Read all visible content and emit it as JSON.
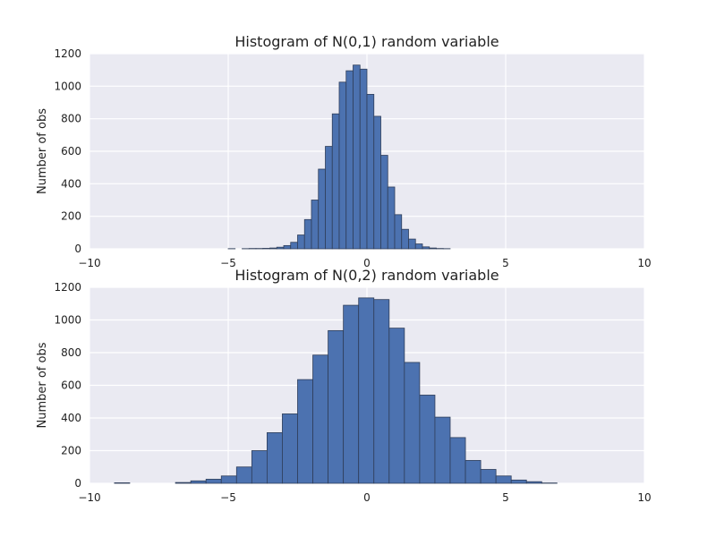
{
  "chart_data": [
    {
      "type": "bar",
      "title": "Histogram of N(0,1) random variable",
      "xlabel": "",
      "ylabel": "Number of obs",
      "xlim": [
        -10,
        10
      ],
      "ylim": [
        0,
        1200
      ],
      "xticks": [
        -10,
        -5,
        0,
        5,
        10
      ],
      "xtick_labels": [
        "−10",
        "−5",
        "0",
        "5",
        "10"
      ],
      "yticks": [
        0,
        200,
        400,
        600,
        800,
        1000,
        1200
      ],
      "ytick_labels": [
        "0",
        "200",
        "400",
        "600",
        "800",
        "1000",
        "1200"
      ],
      "grid": true,
      "bin_edges": [
        -5.0,
        -4.75,
        -4.5,
        -4.25,
        -4.0,
        -3.75,
        -3.5,
        -3.25,
        -3.0,
        -2.75,
        -2.5,
        -2.25,
        -2.0,
        -1.75,
        -1.5,
        -1.25,
        -1.0,
        -0.75,
        -0.5,
        -0.25,
        0.0,
        0.25,
        0.5,
        0.75,
        1.0,
        1.25,
        1.5,
        1.75,
        2.0,
        2.25,
        2.5,
        2.75,
        3.0,
        3.25,
        3.5,
        3.75
      ],
      "values": [
        1,
        0,
        1,
        2,
        2,
        3,
        5,
        10,
        20,
        40,
        85,
        180,
        300,
        490,
        630,
        830,
        1025,
        1095,
        1130,
        1105,
        950,
        815,
        575,
        380,
        210,
        120,
        60,
        30,
        12,
        5,
        2,
        1,
        0,
        0,
        0
      ]
    },
    {
      "type": "bar",
      "title": "Histogram of N(0,2) random variable",
      "xlabel": "",
      "ylabel": "Number of obs",
      "xlim": [
        -10,
        10
      ],
      "ylim": [
        0,
        1200
      ],
      "xticks": [
        -10,
        -5,
        0,
        5,
        10
      ],
      "xtick_labels": [
        "−10",
        "−5",
        "0",
        "5",
        "10"
      ],
      "yticks": [
        0,
        200,
        400,
        600,
        800,
        1000,
        1200
      ],
      "ytick_labels": [
        "0",
        "200",
        "400",
        "600",
        "800",
        "1000",
        "1200"
      ],
      "grid": true,
      "bin_edges": [
        -9.1,
        -8.55,
        -8.0,
        -7.45,
        -6.9,
        -6.35,
        -5.8,
        -5.25,
        -4.7,
        -4.15,
        -3.6,
        -3.05,
        -2.5,
        -1.95,
        -1.4,
        -0.85,
        -0.3,
        0.25,
        0.8,
        1.35,
        1.9,
        2.45,
        3.0,
        3.55,
        4.1,
        4.65,
        5.2,
        5.75,
        6.3,
        6.85,
        7.4,
        7.95,
        8.5
      ],
      "values": [
        3,
        0,
        0,
        0,
        5,
        15,
        25,
        45,
        100,
        200,
        310,
        425,
        635,
        785,
        935,
        1090,
        1135,
        1125,
        950,
        740,
        540,
        405,
        280,
        140,
        85,
        45,
        20,
        10,
        2,
        0,
        0,
        0
      ]
    }
  ]
}
